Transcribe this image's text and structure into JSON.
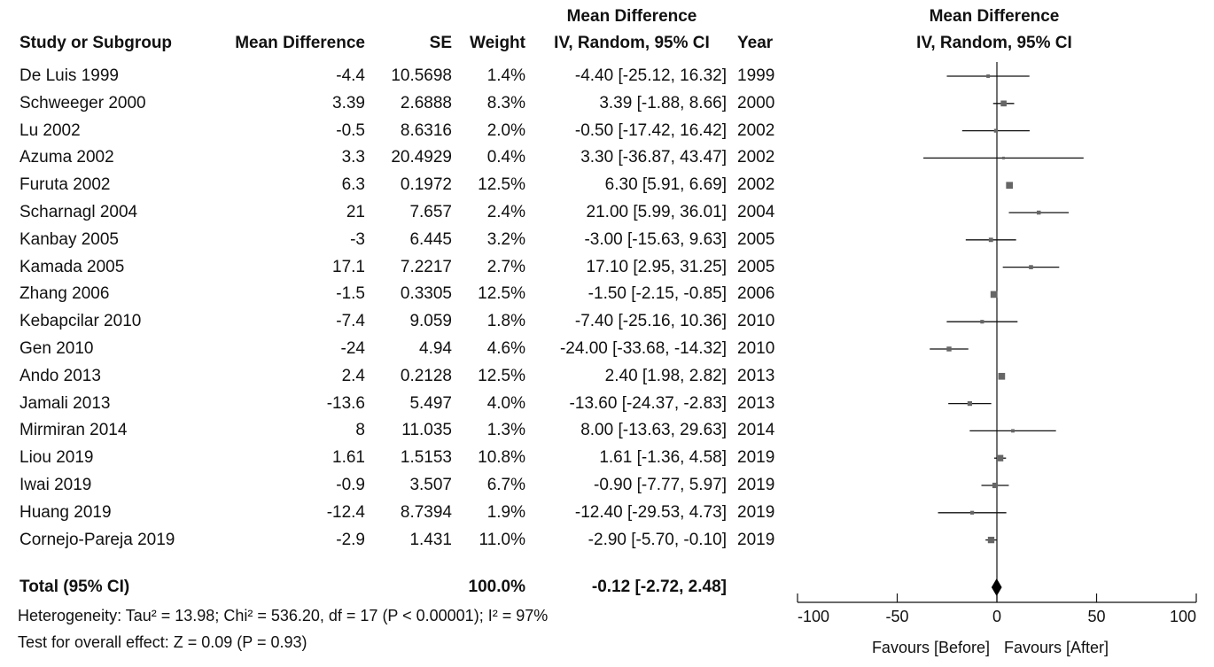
{
  "chart_data": {
    "type": "forest",
    "headers": {
      "study": "Study or Subgroup",
      "md": "Mean Difference",
      "se": "SE",
      "weight": "Weight",
      "ci_top": "Mean Difference",
      "ci_bottom": "IV, Random, 95% CI",
      "year": "Year",
      "plot_top": "Mean Difference",
      "plot_bottom": "IV, Random, 95% CI"
    },
    "studies": [
      {
        "name": "De Luis 1999",
        "md": "-4.4",
        "se": "10.5698",
        "weight": "1.4%",
        "ci": "-4.40 [-25.12, 16.32]",
        "year": "1999",
        "est": -4.4,
        "lo": -25.12,
        "hi": 16.32,
        "w": 1.4
      },
      {
        "name": "Schweeger 2000",
        "md": "3.39",
        "se": "2.6888",
        "weight": "8.3%",
        "ci": "3.39 [-1.88, 8.66]",
        "year": "2000",
        "est": 3.39,
        "lo": -1.88,
        "hi": 8.66,
        "w": 8.3
      },
      {
        "name": "Lu 2002",
        "md": "-0.5",
        "se": "8.6316",
        "weight": "2.0%",
        "ci": "-0.50 [-17.42, 16.42]",
        "year": "2002",
        "est": -0.5,
        "lo": -17.42,
        "hi": 16.42,
        "w": 2.0
      },
      {
        "name": "Azuma 2002",
        "md": "3.3",
        "se": "20.4929",
        "weight": "0.4%",
        "ci": "3.30 [-36.87, 43.47]",
        "year": "2002",
        "est": 3.3,
        "lo": -36.87,
        "hi": 43.47,
        "w": 0.4
      },
      {
        "name": "Furuta 2002",
        "md": "6.3",
        "se": "0.1972",
        "weight": "12.5%",
        "ci": "6.30 [5.91, 6.69]",
        "year": "2002",
        "est": 6.3,
        "lo": 5.91,
        "hi": 6.69,
        "w": 12.5
      },
      {
        "name": "Scharnagl 2004",
        "md": "21",
        "se": "7.657",
        "weight": "2.4%",
        "ci": "21.00 [5.99, 36.01]",
        "year": "2004",
        "est": 21.0,
        "lo": 5.99,
        "hi": 36.01,
        "w": 2.4
      },
      {
        "name": "Kanbay 2005",
        "md": "-3",
        "se": "6.445",
        "weight": "3.2%",
        "ci": "-3.00 [-15.63, 9.63]",
        "year": "2005",
        "est": -3.0,
        "lo": -15.63,
        "hi": 9.63,
        "w": 3.2
      },
      {
        "name": "Kamada 2005",
        "md": "17.1",
        "se": "7.2217",
        "weight": "2.7%",
        "ci": "17.10 [2.95, 31.25]",
        "year": "2005",
        "est": 17.1,
        "lo": 2.95,
        "hi": 31.25,
        "w": 2.7
      },
      {
        "name": "Zhang 2006",
        "md": "-1.5",
        "se": "0.3305",
        "weight": "12.5%",
        "ci": "-1.50 [-2.15, -0.85]",
        "year": "2006",
        "est": -1.5,
        "lo": -2.15,
        "hi": -0.85,
        "w": 12.5
      },
      {
        "name": "Kebapcilar 2010",
        "md": "-7.4",
        "se": "9.059",
        "weight": "1.8%",
        "ci": "-7.40 [-25.16, 10.36]",
        "year": "2010",
        "est": -7.4,
        "lo": -25.16,
        "hi": 10.36,
        "w": 1.8
      },
      {
        "name": "Gen 2010",
        "md": "-24",
        "se": "4.94",
        "weight": "4.6%",
        "ci": "-24.00 [-33.68, -14.32]",
        "year": "2010",
        "est": -24.0,
        "lo": -33.68,
        "hi": -14.32,
        "w": 4.6
      },
      {
        "name": "Ando 2013",
        "md": "2.4",
        "se": "0.2128",
        "weight": "12.5%",
        "ci": "2.40 [1.98, 2.82]",
        "year": "2013",
        "est": 2.4,
        "lo": 1.98,
        "hi": 2.82,
        "w": 12.5
      },
      {
        "name": "Jamali 2013",
        "md": "-13.6",
        "se": "5.497",
        "weight": "4.0%",
        "ci": "-13.60 [-24.37, -2.83]",
        "year": "2013",
        "est": -13.6,
        "lo": -24.37,
        "hi": -2.83,
        "w": 4.0
      },
      {
        "name": "Mirmiran 2014",
        "md": "8",
        "se": "11.035",
        "weight": "1.3%",
        "ci": "8.00 [-13.63, 29.63]",
        "year": "2014",
        "est": 8.0,
        "lo": -13.63,
        "hi": 29.63,
        "w": 1.3
      },
      {
        "name": "Liou 2019",
        "md": "1.61",
        "se": "1.5153",
        "weight": "10.8%",
        "ci": "1.61 [-1.36, 4.58]",
        "year": "2019",
        "est": 1.61,
        "lo": -1.36,
        "hi": 4.58,
        "w": 10.8
      },
      {
        "name": "Iwai 2019",
        "md": "-0.9",
        "se": "3.507",
        "weight": "6.7%",
        "ci": "-0.90 [-7.77, 5.97]",
        "year": "2019",
        "est": -0.9,
        "lo": -7.77,
        "hi": 5.97,
        "w": 6.7
      },
      {
        "name": "Huang 2019",
        "md": "-12.4",
        "se": "8.7394",
        "weight": "1.9%",
        "ci": "-12.40 [-29.53, 4.73]",
        "year": "2019",
        "est": -12.4,
        "lo": -29.53,
        "hi": 4.73,
        "w": 1.9
      },
      {
        "name": "Cornejo-Pareja 2019",
        "md": "-2.9",
        "se": "1.431",
        "weight": "11.0%",
        "ci": "-2.90 [-5.70, -0.10]",
        "year": "2019",
        "est": -2.9,
        "lo": -5.7,
        "hi": -0.1,
        "w": 11.0
      }
    ],
    "total": {
      "label": "Total (95% CI)",
      "weight": "100.0%",
      "ci": "-0.12 [-2.72, 2.48]",
      "est": -0.12,
      "lo": -2.72,
      "hi": 2.48
    },
    "heterogeneity": "Heterogeneity: Tau² = 13.98; Chi² = 536.20, df = 17 (P < 0.00001); I² = 97%",
    "overall_effect": "Test for overall effect: Z = 0.09 (P = 0.93)",
    "axis": {
      "min": -100,
      "max": 100,
      "ticks": [
        -100,
        -50,
        0,
        50,
        100
      ]
    },
    "favours_left": "Favours [Before]",
    "favours_right": "Favours [After]"
  }
}
